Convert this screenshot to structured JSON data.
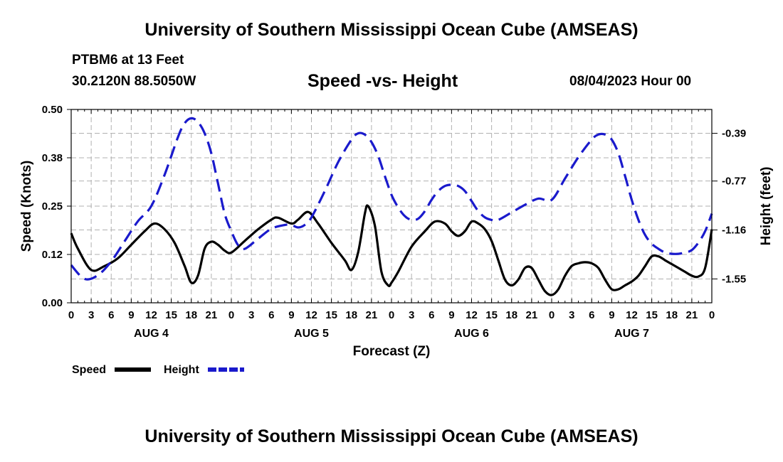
{
  "header": {
    "title": "University of Southern Mississippi Ocean Cube (AMSEAS)",
    "station": "PTBM6 at 13 Feet",
    "location": "30.2120N  88.5050W",
    "chart_title": "Speed -vs- Height",
    "date": "08/04/2023 Hour 00",
    "footer_title": "University of Southern Mississippi Ocean Cube (AMSEAS)"
  },
  "colors": {
    "speed": "#000000",
    "height": "#1a1acc",
    "grid": "#b0b0b0"
  },
  "chart_data": {
    "type": "line",
    "title": "Speed -vs- Height",
    "xlabel": "Forecast (Z)",
    "ylabel": "Speed (Knots)",
    "ylabel_right": "Height (feet)",
    "x_range": [
      0,
      96
    ],
    "x_ticks": [
      {
        "x": 0,
        "label": "0"
      },
      {
        "x": 3,
        "label": "3"
      },
      {
        "x": 6,
        "label": "6"
      },
      {
        "x": 9,
        "label": "9"
      },
      {
        "x": 12,
        "label": "12"
      },
      {
        "x": 15,
        "label": "15"
      },
      {
        "x": 18,
        "label": "18"
      },
      {
        "x": 21,
        "label": "21"
      },
      {
        "x": 24,
        "label": "0"
      },
      {
        "x": 27,
        "label": "3"
      },
      {
        "x": 30,
        "label": "6"
      },
      {
        "x": 33,
        "label": "9"
      },
      {
        "x": 36,
        "label": "12"
      },
      {
        "x": 39,
        "label": "15"
      },
      {
        "x": 42,
        "label": "18"
      },
      {
        "x": 45,
        "label": "21"
      },
      {
        "x": 48,
        "label": "0"
      },
      {
        "x": 51,
        "label": "3"
      },
      {
        "x": 54,
        "label": "6"
      },
      {
        "x": 57,
        "label": "9"
      },
      {
        "x": 60,
        "label": "12"
      },
      {
        "x": 63,
        "label": "15"
      },
      {
        "x": 66,
        "label": "18"
      },
      {
        "x": 69,
        "label": "21"
      },
      {
        "x": 72,
        "label": "0"
      },
      {
        "x": 75,
        "label": "3"
      },
      {
        "x": 78,
        "label": "6"
      },
      {
        "x": 81,
        "label": "9"
      },
      {
        "x": 84,
        "label": "12"
      },
      {
        "x": 87,
        "label": "15"
      },
      {
        "x": 90,
        "label": "18"
      },
      {
        "x": 93,
        "label": "21"
      },
      {
        "x": 96,
        "label": "0"
      }
    ],
    "day_labels": [
      {
        "x": 12,
        "label": "AUG 4"
      },
      {
        "x": 36,
        "label": "AUG 5"
      },
      {
        "x": 60,
        "label": "AUG 6"
      },
      {
        "x": 84,
        "label": "AUG 7"
      }
    ],
    "ylim": [
      0,
      0.5
    ],
    "y_ticks": [
      "0.00",
      "0.12",
      "0.25",
      "0.38",
      "0.50"
    ],
    "y_tick_values": [
      0,
      0.125,
      0.25,
      0.375,
      0.5
    ],
    "ylim_right": [
      -1.74,
      -0.2
    ],
    "y_ticks_right": [
      "-1.55",
      "-1.16",
      "-0.77",
      "-0.39"
    ],
    "y_tick_values_right": [
      -1.55,
      -1.16,
      -0.77,
      -0.39
    ],
    "legend": [
      "Speed",
      "Height"
    ],
    "legend_position": "bottom-left",
    "grid": true,
    "series": [
      {
        "name": "Speed",
        "axis": "left",
        "style": "solid",
        "x": [
          0,
          1,
          3,
          5,
          7,
          9,
          11,
          12.5,
          14,
          15.5,
          17,
          18,
          19,
          20,
          21,
          22,
          23,
          24,
          26,
          28,
          30,
          31,
          33,
          34,
          35.5,
          37,
          39,
          41,
          42,
          43,
          44,
          44.5,
          45.5,
          46.5,
          47.5,
          48,
          49,
          51,
          53,
          54.5,
          56,
          57,
          58,
          59,
          60,
          61,
          62,
          63,
          64,
          65,
          66,
          67,
          68,
          69,
          70,
          71,
          72,
          73,
          74,
          75,
          76,
          77,
          78,
          79,
          80,
          81,
          82,
          83,
          84,
          85,
          86,
          87,
          88,
          89,
          90,
          91,
          92,
          93,
          94,
          95,
          96
        ],
        "values": [
          0.18,
          0.14,
          0.085,
          0.095,
          0.115,
          0.15,
          0.185,
          0.205,
          0.19,
          0.155,
          0.095,
          0.052,
          0.07,
          0.14,
          0.158,
          0.15,
          0.135,
          0.13,
          0.16,
          0.19,
          0.215,
          0.22,
          0.205,
          0.215,
          0.235,
          0.205,
          0.155,
          0.11,
          0.085,
          0.13,
          0.23,
          0.25,
          0.2,
          0.08,
          0.045,
          0.052,
          0.08,
          0.145,
          0.185,
          0.21,
          0.205,
          0.185,
          0.173,
          0.185,
          0.21,
          0.205,
          0.19,
          0.16,
          0.11,
          0.06,
          0.045,
          0.06,
          0.09,
          0.09,
          0.06,
          0.03,
          0.02,
          0.035,
          0.07,
          0.095,
          0.102,
          0.105,
          0.102,
          0.09,
          0.06,
          0.035,
          0.035,
          0.045,
          0.055,
          0.07,
          0.095,
          0.12,
          0.12,
          0.11,
          0.1,
          0.09,
          0.08,
          0.07,
          0.068,
          0.09,
          0.19
        ]
      },
      {
        "name": "Height",
        "axis": "right",
        "style": "dashed",
        "x": [
          0,
          2,
          4,
          6,
          8,
          10,
          12,
          14,
          16,
          17,
          18,
          19,
          20,
          21,
          22,
          23,
          24,
          25,
          26,
          28,
          30,
          32,
          33,
          34,
          35,
          36,
          38,
          40,
          42,
          43,
          44,
          45,
          46,
          47,
          48,
          49,
          50,
          51,
          52,
          53,
          54,
          55,
          56,
          57,
          58,
          59,
          60,
          61,
          62,
          63,
          64,
          66,
          68,
          70,
          72,
          74,
          76,
          78,
          79,
          80,
          81,
          82,
          83,
          84,
          85,
          86,
          87,
          88,
          89,
          90,
          91,
          92,
          93,
          94,
          95,
          96
        ],
        "values": [
          -1.44,
          -1.55,
          -1.52,
          -1.41,
          -1.25,
          -1.09,
          -0.97,
          -0.72,
          -0.42,
          -0.31,
          -0.27,
          -0.3,
          -0.39,
          -0.55,
          -0.79,
          -1.03,
          -1.17,
          -1.28,
          -1.31,
          -1.23,
          -1.15,
          -1.12,
          -1.12,
          -1.14,
          -1.12,
          -1.06,
          -0.85,
          -0.62,
          -0.44,
          -0.39,
          -0.4,
          -0.46,
          -0.57,
          -0.73,
          -0.88,
          -0.98,
          -1.05,
          -1.08,
          -1.07,
          -1.01,
          -0.92,
          -0.85,
          -0.81,
          -0.8,
          -0.81,
          -0.85,
          -0.93,
          -1.01,
          -1.06,
          -1.08,
          -1.08,
          -1.02,
          -0.96,
          -0.91,
          -0.92,
          -0.75,
          -0.58,
          -0.44,
          -0.4,
          -0.4,
          -0.44,
          -0.55,
          -0.73,
          -0.92,
          -1.08,
          -1.2,
          -1.27,
          -1.31,
          -1.34,
          -1.35,
          -1.35,
          -1.34,
          -1.32,
          -1.26,
          -1.17,
          -1.03
        ]
      }
    ]
  }
}
